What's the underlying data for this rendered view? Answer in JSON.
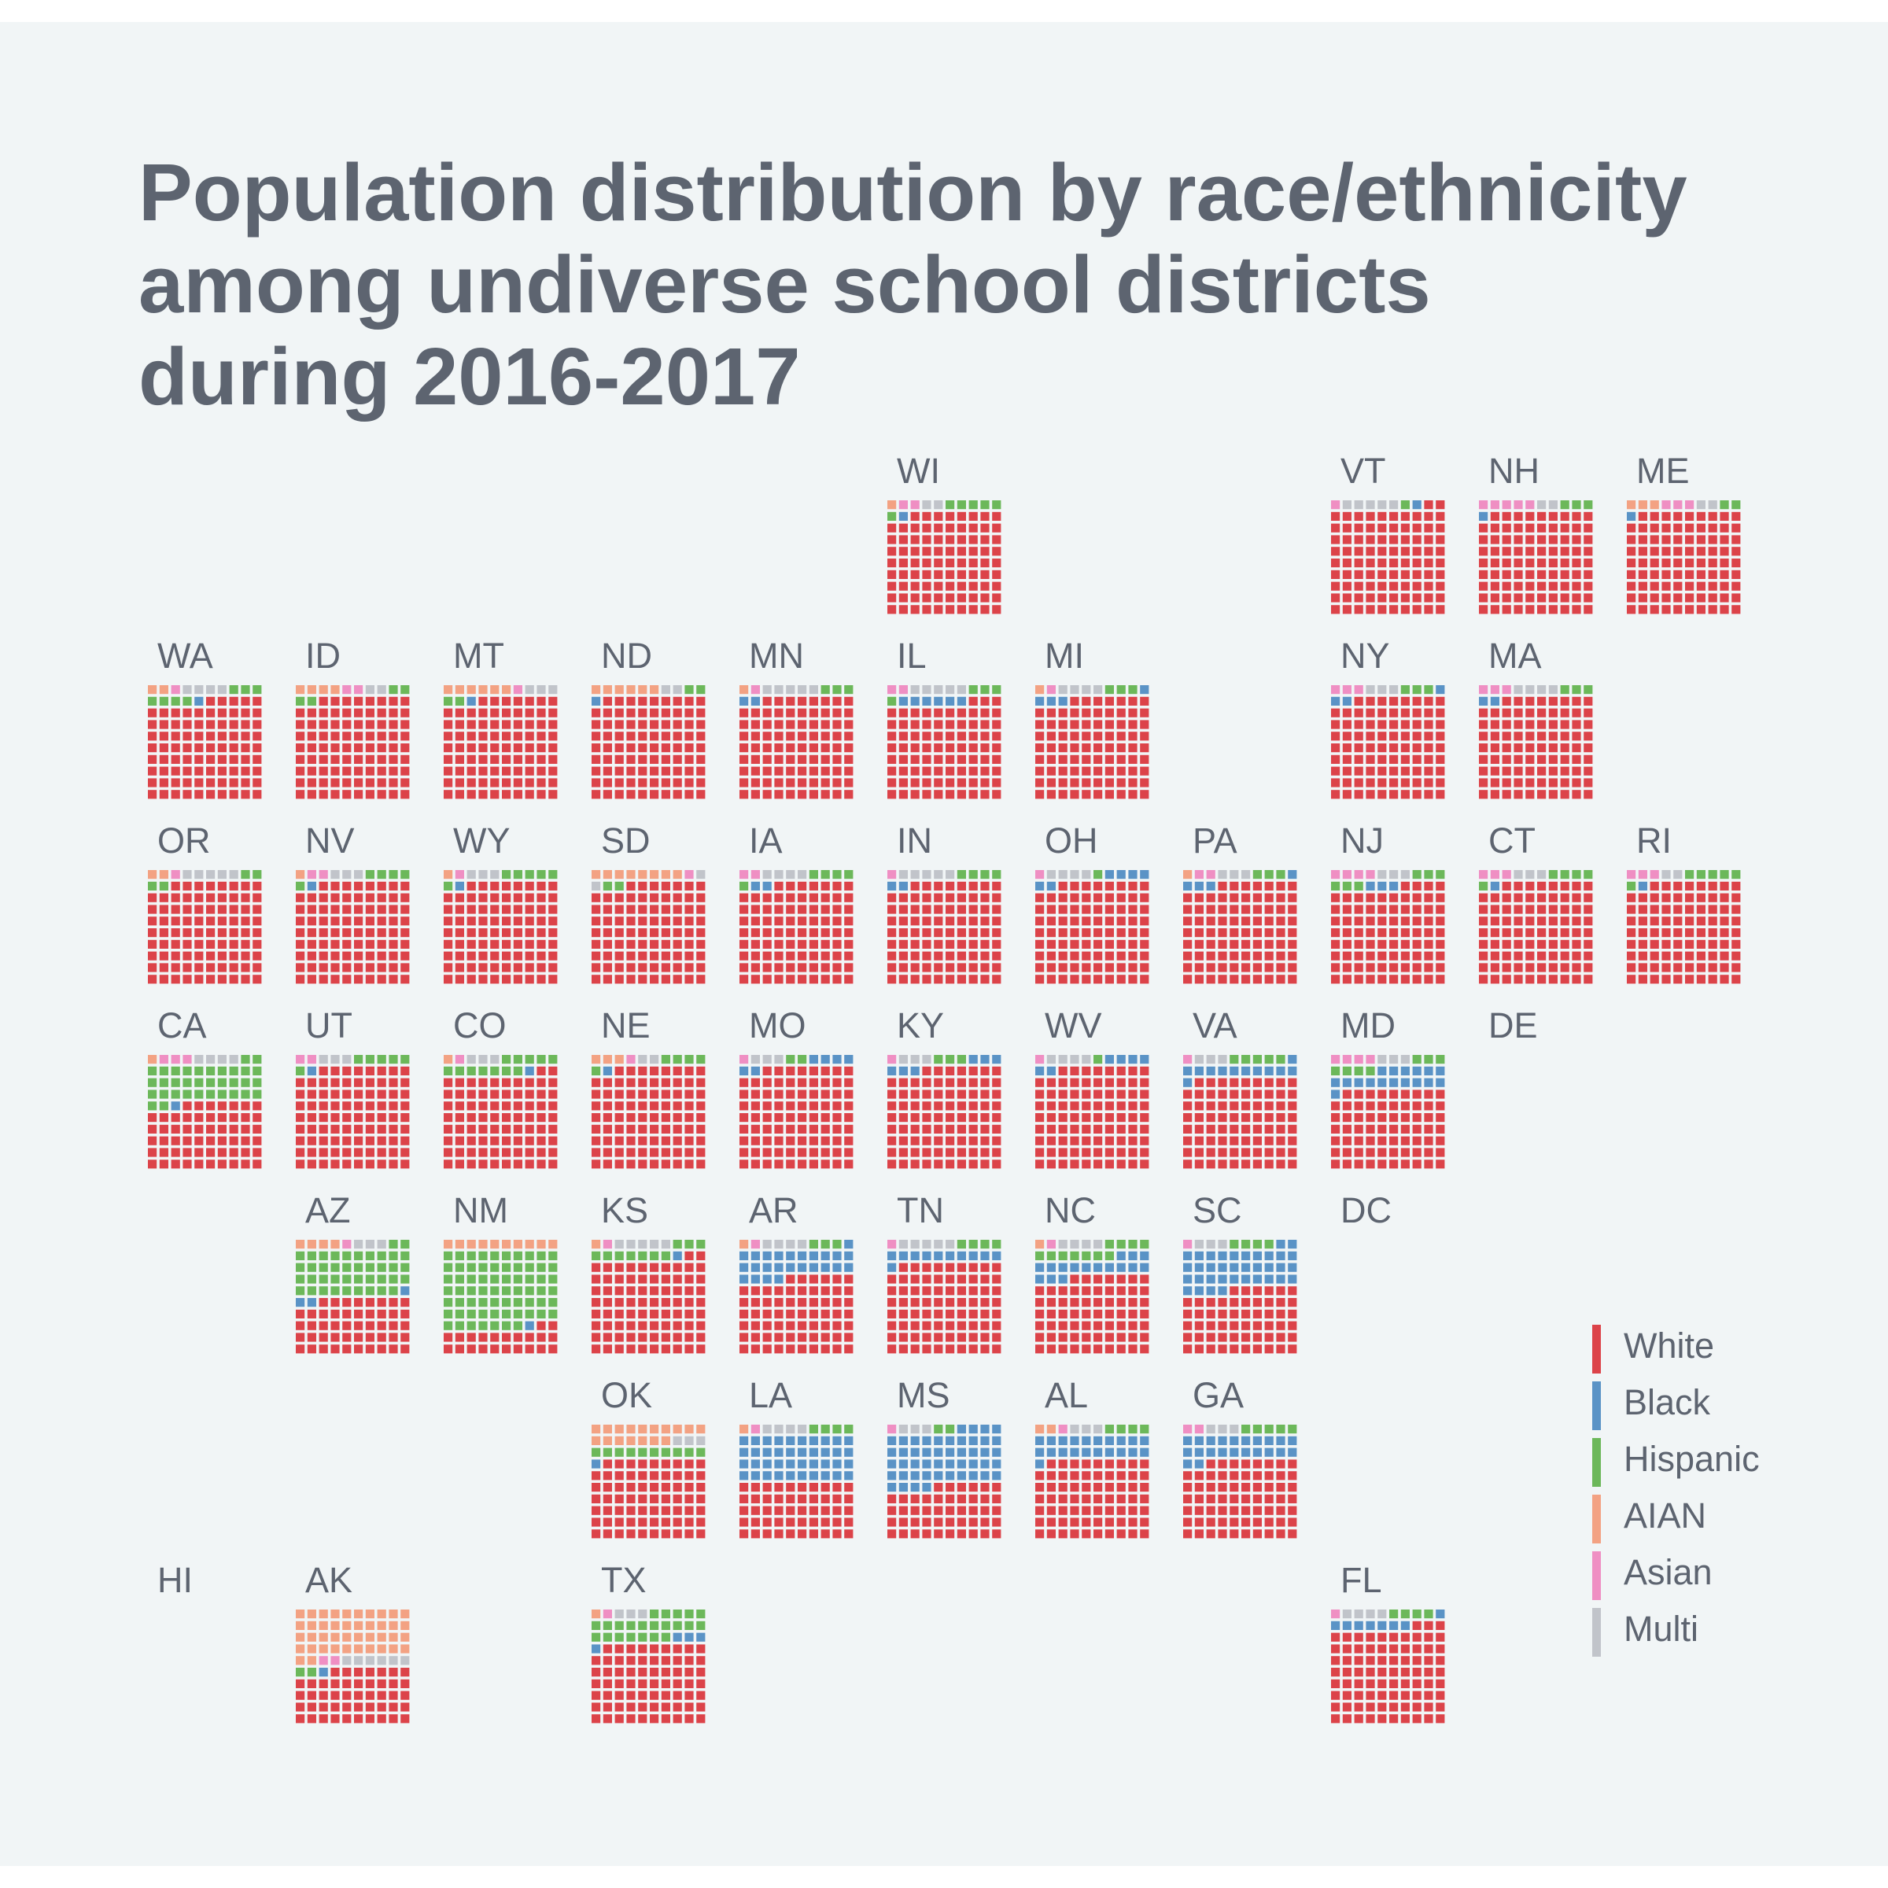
{
  "chart_data": {
    "type": "waffle tile map",
    "title": [
      "Population distribution by race/ethnicity",
      "among undiverse school districts",
      "during 2016-2017"
    ],
    "unit": "squares per 100 (10x10 grid)",
    "categories": [
      "White",
      "Black",
      "Hispanic",
      "AIAN",
      "Asian",
      "Multi"
    ],
    "colors": {
      "White": "#dc4349",
      "Black": "#5a93c6",
      "Hispanic": "#6cb85a",
      "AIAN": "#f3a283",
      "Asian": "#ef8fc3",
      "Multi": "#c1c4ca"
    },
    "legend_position": "bottom-right",
    "states": [
      {
        "name": "WI",
        "col": 5,
        "row": 0,
        "values": [
          88,
          1,
          6,
          1,
          2,
          2
        ]
      },
      {
        "name": "VT",
        "col": 8,
        "row": 0,
        "values": [
          92,
          1,
          1,
          0,
          1,
          5
        ]
      },
      {
        "name": "NH",
        "col": 9,
        "row": 0,
        "values": [
          89,
          1,
          3,
          0,
          5,
          2
        ]
      },
      {
        "name": "ME",
        "col": 10,
        "row": 0,
        "values": [
          89,
          1,
          2,
          3,
          3,
          2
        ]
      },
      {
        "name": "WA",
        "col": 0,
        "row": 1,
        "values": [
          85,
          1,
          7,
          2,
          1,
          4
        ]
      },
      {
        "name": "ID",
        "col": 1,
        "row": 1,
        "values": [
          88,
          0,
          4,
          4,
          2,
          2
        ]
      },
      {
        "name": "MT",
        "col": 2,
        "row": 1,
        "values": [
          87,
          1,
          2,
          6,
          1,
          3
        ]
      },
      {
        "name": "ND",
        "col": 3,
        "row": 1,
        "values": [
          89,
          1,
          2,
          6,
          0,
          2
        ]
      },
      {
        "name": "MN",
        "col": 4,
        "row": 1,
        "values": [
          88,
          2,
          3,
          1,
          1,
          5
        ]
      },
      {
        "name": "IL",
        "col": 5,
        "row": 1,
        "values": [
          83,
          6,
          4,
          0,
          2,
          5
        ]
      },
      {
        "name": "MI",
        "col": 6,
        "row": 1,
        "values": [
          87,
          4,
          3,
          1,
          1,
          4
        ]
      },
      {
        "name": "NY",
        "col": 8,
        "row": 1,
        "values": [
          88,
          3,
          3,
          0,
          3,
          3
        ]
      },
      {
        "name": "MA",
        "col": 9,
        "row": 1,
        "values": [
          88,
          2,
          3,
          0,
          3,
          4
        ]
      },
      {
        "name": "OR",
        "col": 0,
        "row": 2,
        "values": [
          88,
          0,
          4,
          2,
          1,
          5
        ]
      },
      {
        "name": "NV",
        "col": 1,
        "row": 2,
        "values": [
          88,
          1,
          5,
          1,
          2,
          3
        ]
      },
      {
        "name": "WY",
        "col": 2,
        "row": 2,
        "values": [
          88,
          1,
          6,
          1,
          1,
          3
        ]
      },
      {
        "name": "SD",
        "col": 3,
        "row": 2,
        "values": [
          87,
          0,
          2,
          8,
          1,
          2
        ]
      },
      {
        "name": "IA",
        "col": 4,
        "row": 2,
        "values": [
          87,
          2,
          5,
          0,
          2,
          4
        ]
      },
      {
        "name": "IN",
        "col": 5,
        "row": 2,
        "values": [
          88,
          2,
          4,
          0,
          1,
          5
        ]
      },
      {
        "name": "OH",
        "col": 6,
        "row": 2,
        "values": [
          88,
          6,
          1,
          0,
          1,
          4
        ]
      },
      {
        "name": "PA",
        "col": 7,
        "row": 2,
        "values": [
          87,
          4,
          3,
          1,
          2,
          3
        ]
      },
      {
        "name": "NJ",
        "col": 8,
        "row": 2,
        "values": [
          84,
          3,
          6,
          0,
          4,
          3
        ]
      },
      {
        "name": "CT",
        "col": 9,
        "row": 2,
        "values": [
          88,
          1,
          5,
          0,
          3,
          3
        ]
      },
      {
        "name": "RI",
        "col": 10,
        "row": 2,
        "values": [
          88,
          1,
          6,
          0,
          3,
          2
        ]
      },
      {
        "name": "CA",
        "col": 0,
        "row": 3,
        "values": [
          57,
          1,
          34,
          1,
          3,
          4
        ]
      },
      {
        "name": "UT",
        "col": 1,
        "row": 3,
        "values": [
          88,
          1,
          6,
          0,
          2,
          3
        ]
      },
      {
        "name": "CO",
        "col": 2,
        "row": 3,
        "values": [
          82,
          1,
          12,
          1,
          1,
          3
        ]
      },
      {
        "name": "NE",
        "col": 3,
        "row": 3,
        "values": [
          88,
          1,
          5,
          3,
          1,
          2
        ]
      },
      {
        "name": "MO",
        "col": 4,
        "row": 3,
        "values": [
          88,
          6,
          2,
          0,
          1,
          3
        ]
      },
      {
        "name": "KY",
        "col": 5,
        "row": 3,
        "values": [
          87,
          6,
          3,
          0,
          1,
          3
        ]
      },
      {
        "name": "WV",
        "col": 6,
        "row": 3,
        "values": [
          88,
          6,
          1,
          0,
          1,
          4
        ]
      },
      {
        "name": "VA",
        "col": 7,
        "row": 3,
        "values": [
          79,
          12,
          5,
          0,
          1,
          3
        ]
      },
      {
        "name": "MD",
        "col": 8,
        "row": 3,
        "values": [
          69,
          17,
          7,
          0,
          4,
          3
        ]
      },
      {
        "name": "DE",
        "col": 9,
        "row": 3,
        "values": []
      },
      {
        "name": "AZ",
        "col": 1,
        "row": 4,
        "values": [
          48,
          3,
          41,
          4,
          1,
          3
        ]
      },
      {
        "name": "NM",
        "col": 2,
        "row": 4,
        "values": [
          22,
          1,
          67,
          10,
          0,
          0
        ]
      },
      {
        "name": "KS",
        "col": 3,
        "row": 4,
        "values": [
          82,
          1,
          10,
          1,
          1,
          5
        ]
      },
      {
        "name": "AR",
        "col": 4,
        "row": 4,
        "values": [
          66,
          25,
          3,
          1,
          1,
          4
        ]
      },
      {
        "name": "TN",
        "col": 5,
        "row": 4,
        "values": [
          79,
          11,
          4,
          0,
          1,
          5
        ]
      },
      {
        "name": "NC",
        "col": 6,
        "row": 4,
        "values": [
          67,
          16,
          11,
          1,
          1,
          4
        ]
      },
      {
        "name": "SC",
        "col": 7,
        "row": 4,
        "values": [
          56,
          36,
          4,
          0,
          1,
          3
        ]
      },
      {
        "name": "DC",
        "col": 8,
        "row": 4,
        "values": []
      },
      {
        "name": "OK",
        "col": 3,
        "row": 5,
        "values": [
          69,
          1,
          10,
          17,
          0,
          3
        ]
      },
      {
        "name": "LA",
        "col": 4,
        "row": 5,
        "values": [
          50,
          40,
          4,
          1,
          1,
          4
        ]
      },
      {
        "name": "MS",
        "col": 5,
        "row": 5,
        "values": [
          46,
          48,
          2,
          0,
          1,
          3
        ]
      },
      {
        "name": "AL",
        "col": 6,
        "row": 5,
        "values": [
          69,
          21,
          4,
          2,
          1,
          3
        ]
      },
      {
        "name": "GA",
        "col": 7,
        "row": 5,
        "values": [
          68,
          22,
          5,
          0,
          2,
          3
        ]
      },
      {
        "name": "HI",
        "col": 0,
        "row": 6,
        "values": []
      },
      {
        "name": "AK",
        "col": 1,
        "row": 6,
        "values": [
          47,
          1,
          2,
          42,
          2,
          6
        ]
      },
      {
        "name": "TX",
        "col": 3,
        "row": 6,
        "values": [
          69,
          4,
          22,
          1,
          1,
          3
        ]
      },
      {
        "name": "FL",
        "col": 8,
        "row": 6,
        "values": [
          83,
          8,
          4,
          0,
          1,
          4
        ]
      }
    ]
  }
}
